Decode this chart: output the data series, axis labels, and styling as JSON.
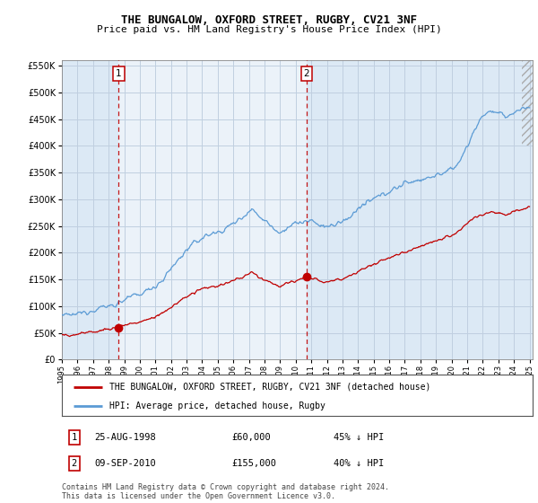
{
  "title": "THE BUNGALOW, OXFORD STREET, RUGBY, CV21 3NF",
  "subtitle": "Price paid vs. HM Land Registry's House Price Index (HPI)",
  "legend_line1": "THE BUNGALOW, OXFORD STREET, RUGBY, CV21 3NF (detached house)",
  "legend_line2": "HPI: Average price, detached house, Rugby",
  "footer1": "Contains HM Land Registry data © Crown copyright and database right 2024.",
  "footer2": "This data is licensed under the Open Government Licence v3.0.",
  "transaction1_label": "1",
  "transaction1_date": "25-AUG-1998",
  "transaction1_price": "£60,000",
  "transaction1_hpi": "45% ↓ HPI",
  "transaction1_year": 1998.65,
  "transaction1_value": 60000,
  "transaction2_label": "2",
  "transaction2_date": "09-SEP-2010",
  "transaction2_price": "£155,000",
  "transaction2_hpi": "40% ↓ HPI",
  "transaction2_year": 2010.69,
  "transaction2_value": 155000,
  "hpi_color": "#5b9bd5",
  "price_color": "#c00000",
  "ylim": [
    0,
    560000
  ],
  "xlim_start": 1995.3,
  "xlim_end": 2025.2,
  "background_color": "#ffffff",
  "plot_bg_color": "#dce9f5",
  "shade_color": "#dce9f5",
  "grid_color": "#c0cfe0",
  "hpi_base": [
    [
      1995,
      84000
    ],
    [
      1995.5,
      82000
    ],
    [
      1996,
      86000
    ],
    [
      1996.5,
      89000
    ],
    [
      1997,
      93000
    ],
    [
      1997.5,
      98000
    ],
    [
      1998,
      100000
    ],
    [
      1998.5,
      104000
    ],
    [
      1999,
      112000
    ],
    [
      1999.5,
      118000
    ],
    [
      2000,
      122000
    ],
    [
      2000.5,
      130000
    ],
    [
      2001,
      138000
    ],
    [
      2001.5,
      150000
    ],
    [
      2002,
      170000
    ],
    [
      2002.5,
      188000
    ],
    [
      2003,
      205000
    ],
    [
      2003.5,
      218000
    ],
    [
      2004,
      228000
    ],
    [
      2004.5,
      235000
    ],
    [
      2005,
      238000
    ],
    [
      2005.5,
      245000
    ],
    [
      2006,
      255000
    ],
    [
      2006.5,
      265000
    ],
    [
      2007,
      278000
    ],
    [
      2007.25,
      282000
    ],
    [
      2007.5,
      272000
    ],
    [
      2008,
      262000
    ],
    [
      2008.5,
      248000
    ],
    [
      2009,
      238000
    ],
    [
      2009.5,
      248000
    ],
    [
      2010,
      255000
    ],
    [
      2010.5,
      258000
    ],
    [
      2011,
      258000
    ],
    [
      2011.5,
      253000
    ],
    [
      2012,
      248000
    ],
    [
      2012.5,
      252000
    ],
    [
      2013,
      258000
    ],
    [
      2013.5,
      268000
    ],
    [
      2014,
      282000
    ],
    [
      2014.5,
      292000
    ],
    [
      2015,
      300000
    ],
    [
      2015.5,
      308000
    ],
    [
      2016,
      315000
    ],
    [
      2016.5,
      322000
    ],
    [
      2017,
      330000
    ],
    [
      2017.5,
      334000
    ],
    [
      2018,
      337000
    ],
    [
      2018.5,
      340000
    ],
    [
      2019,
      345000
    ],
    [
      2019.5,
      350000
    ],
    [
      2020,
      355000
    ],
    [
      2020.5,
      370000
    ],
    [
      2021,
      400000
    ],
    [
      2021.5,
      430000
    ],
    [
      2022,
      458000
    ],
    [
      2022.5,
      465000
    ],
    [
      2023,
      460000
    ],
    [
      2023.5,
      455000
    ],
    [
      2024,
      462000
    ],
    [
      2024.5,
      470000
    ],
    [
      2025,
      472000
    ]
  ],
  "red_base": [
    [
      1995,
      47000
    ],
    [
      1995.5,
      45000
    ],
    [
      1996,
      48000
    ],
    [
      1996.5,
      50000
    ],
    [
      1997,
      52000
    ],
    [
      1997.5,
      55000
    ],
    [
      1998,
      57000
    ],
    [
      1998.5,
      60000
    ],
    [
      1999,
      65000
    ],
    [
      1999.5,
      68000
    ],
    [
      2000,
      70000
    ],
    [
      2000.5,
      75000
    ],
    [
      2001,
      80000
    ],
    [
      2001.5,
      88000
    ],
    [
      2002,
      98000
    ],
    [
      2002.5,
      108000
    ],
    [
      2003,
      118000
    ],
    [
      2003.5,
      125000
    ],
    [
      2004,
      132000
    ],
    [
      2004.5,
      136000
    ],
    [
      2005,
      138000
    ],
    [
      2005.5,
      142000
    ],
    [
      2006,
      148000
    ],
    [
      2006.5,
      153000
    ],
    [
      2007,
      160000
    ],
    [
      2007.25,
      163000
    ],
    [
      2007.5,
      157000
    ],
    [
      2008,
      150000
    ],
    [
      2008.5,
      143000
    ],
    [
      2009,
      137000
    ],
    [
      2009.5,
      143000
    ],
    [
      2010,
      148000
    ],
    [
      2010.5,
      153000
    ],
    [
      2011,
      152000
    ],
    [
      2011.5,
      149000
    ],
    [
      2012,
      145000
    ],
    [
      2012.5,
      148000
    ],
    [
      2013,
      152000
    ],
    [
      2013.5,
      158000
    ],
    [
      2014,
      165000
    ],
    [
      2014.5,
      172000
    ],
    [
      2015,
      178000
    ],
    [
      2015.5,
      185000
    ],
    [
      2016,
      190000
    ],
    [
      2016.5,
      196000
    ],
    [
      2017,
      202000
    ],
    [
      2017.5,
      208000
    ],
    [
      2018,
      212000
    ],
    [
      2018.5,
      218000
    ],
    [
      2019,
      222000
    ],
    [
      2019.5,
      228000
    ],
    [
      2020,
      232000
    ],
    [
      2020.5,
      240000
    ],
    [
      2021,
      255000
    ],
    [
      2021.5,
      265000
    ],
    [
      2022,
      272000
    ],
    [
      2022.5,
      278000
    ],
    [
      2023,
      275000
    ],
    [
      2023.5,
      272000
    ],
    [
      2024,
      278000
    ],
    [
      2024.5,
      282000
    ],
    [
      2025,
      285000
    ]
  ]
}
